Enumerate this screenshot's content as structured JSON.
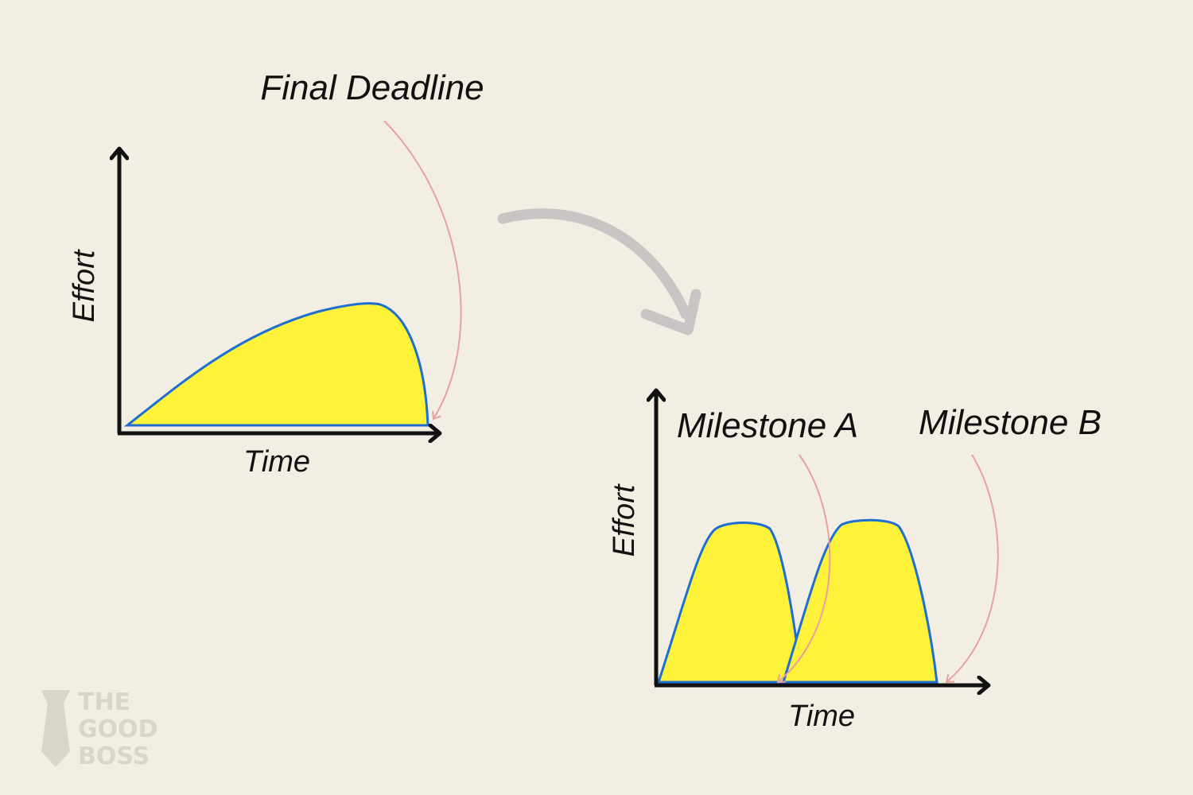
{
  "diagrams": [
    {
      "annotations": [
        "Final Deadline"
      ],
      "y_axis_label": "Effort",
      "x_axis_label": "Time"
    },
    {
      "annotations": [
        "Milestone A",
        "Milestone B"
      ],
      "y_axis_label": "Effort",
      "x_axis_label": "Time"
    }
  ],
  "logo": {
    "lines": [
      "THE",
      "GOOD",
      "BOSS"
    ]
  }
}
